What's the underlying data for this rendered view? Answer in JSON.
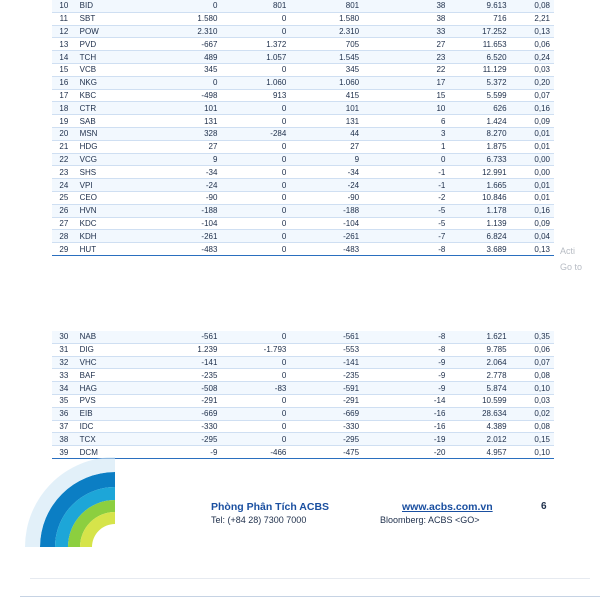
{
  "table_top": [
    {
      "no": "10",
      "code": "BID",
      "v1": "0",
      "v2": "801",
      "v3": "801",
      "v4": "38",
      "v5": "9.613",
      "v6": "0,08"
    },
    {
      "no": "11",
      "code": "SBT",
      "v1": "1.580",
      "v2": "0",
      "v3": "1.580",
      "v4": "38",
      "v5": "716",
      "v6": "2,21"
    },
    {
      "no": "12",
      "code": "POW",
      "v1": "2.310",
      "v2": "0",
      "v3": "2.310",
      "v4": "33",
      "v5": "17.252",
      "v6": "0,13"
    },
    {
      "no": "13",
      "code": "PVD",
      "v1": "-667",
      "v2": "1.372",
      "v3": "705",
      "v4": "27",
      "v5": "11.653",
      "v6": "0,06"
    },
    {
      "no": "14",
      "code": "TCH",
      "v1": "489",
      "v2": "1.057",
      "v3": "1.545",
      "v4": "23",
      "v5": "6.520",
      "v6": "0,24"
    },
    {
      "no": "15",
      "code": "VCB",
      "v1": "345",
      "v2": "0",
      "v3": "345",
      "v4": "22",
      "v5": "11.129",
      "v6": "0,03"
    },
    {
      "no": "16",
      "code": "NKG",
      "v1": "0",
      "v2": "1.060",
      "v3": "1.060",
      "v4": "17",
      "v5": "5.372",
      "v6": "0,20"
    },
    {
      "no": "17",
      "code": "KBC",
      "v1": "-498",
      "v2": "913",
      "v3": "415",
      "v4": "15",
      "v5": "5.599",
      "v6": "0,07"
    },
    {
      "no": "18",
      "code": "CTR",
      "v1": "101",
      "v2": "0",
      "v3": "101",
      "v4": "10",
      "v5": "626",
      "v6": "0,16"
    },
    {
      "no": "19",
      "code": "SAB",
      "v1": "131",
      "v2": "0",
      "v3": "131",
      "v4": "6",
      "v5": "1.424",
      "v6": "0,09"
    },
    {
      "no": "20",
      "code": "MSN",
      "v1": "328",
      "v2": "-284",
      "v3": "44",
      "v4": "3",
      "v5": "8.270",
      "v6": "0,01"
    },
    {
      "no": "21",
      "code": "HDG",
      "v1": "27",
      "v2": "0",
      "v3": "27",
      "v4": "1",
      "v5": "1.875",
      "v6": "0,01"
    },
    {
      "no": "22",
      "code": "VCG",
      "v1": "9",
      "v2": "0",
      "v3": "9",
      "v4": "0",
      "v5": "6.733",
      "v6": "0,00"
    },
    {
      "no": "23",
      "code": "SHS",
      "v1": "-34",
      "v2": "0",
      "v3": "-34",
      "v4": "-1",
      "v5": "12.991",
      "v6": "0,00"
    },
    {
      "no": "24",
      "code": "VPI",
      "v1": "-24",
      "v2": "0",
      "v3": "-24",
      "v4": "-1",
      "v5": "1.665",
      "v6": "0,01"
    },
    {
      "no": "25",
      "code": "CEO",
      "v1": "-90",
      "v2": "0",
      "v3": "-90",
      "v4": "-2",
      "v5": "10.846",
      "v6": "0,01"
    },
    {
      "no": "26",
      "code": "HVN",
      "v1": "-188",
      "v2": "0",
      "v3": "-188",
      "v4": "-5",
      "v5": "1.178",
      "v6": "0,16"
    },
    {
      "no": "27",
      "code": "KDC",
      "v1": "-104",
      "v2": "0",
      "v3": "-104",
      "v4": "-5",
      "v5": "1.139",
      "v6": "0,09"
    },
    {
      "no": "28",
      "code": "KDH",
      "v1": "-261",
      "v2": "0",
      "v3": "-261",
      "v4": "-7",
      "v5": "6.824",
      "v6": "0,04"
    },
    {
      "no": "29",
      "code": "HUT",
      "v1": "-483",
      "v2": "0",
      "v3": "-483",
      "v4": "-8",
      "v5": "3.689",
      "v6": "0,13"
    }
  ],
  "table_bottom": [
    {
      "no": "30",
      "code": "NAB",
      "v1": "-561",
      "v2": "0",
      "v3": "-561",
      "v4": "-8",
      "v5": "1.621",
      "v6": "0,35"
    },
    {
      "no": "31",
      "code": "DIG",
      "v1": "1.239",
      "v2": "-1.793",
      "v3": "-553",
      "v4": "-8",
      "v5": "9.785",
      "v6": "0,06"
    },
    {
      "no": "32",
      "code": "VHC",
      "v1": "-141",
      "v2": "0",
      "v3": "-141",
      "v4": "-9",
      "v5": "2.064",
      "v6": "0,07"
    },
    {
      "no": "33",
      "code": "BAF",
      "v1": "-235",
      "v2": "0",
      "v3": "-235",
      "v4": "-9",
      "v5": "2.778",
      "v6": "0,08"
    },
    {
      "no": "34",
      "code": "HAG",
      "v1": "-508",
      "v2": "-83",
      "v3": "-591",
      "v4": "-9",
      "v5": "5.874",
      "v6": "0,10"
    },
    {
      "no": "35",
      "code": "PVS",
      "v1": "-291",
      "v2": "0",
      "v3": "-291",
      "v4": "-14",
      "v5": "10.599",
      "v6": "0,03"
    },
    {
      "no": "36",
      "code": "EIB",
      "v1": "-669",
      "v2": "0",
      "v3": "-669",
      "v4": "-16",
      "v5": "28.634",
      "v6": "0,02"
    },
    {
      "no": "37",
      "code": "IDC",
      "v1": "-330",
      "v2": "0",
      "v3": "-330",
      "v4": "-16",
      "v5": "4.389",
      "v6": "0,08"
    },
    {
      "no": "38",
      "code": "TCX",
      "v1": "-295",
      "v2": "0",
      "v3": "-295",
      "v4": "-19",
      "v5": "2.012",
      "v6": "0,15"
    },
    {
      "no": "39",
      "code": "DCM",
      "v1": "-9",
      "v2": "-466",
      "v3": "-475",
      "v4": "-20",
      "v5": "4.957",
      "v6": "0,10"
    }
  ],
  "footer": {
    "dept": "Phòng Phân Tích ACBS",
    "tel": "Tel: (+84 28) 7300 7000",
    "website": "www.acbs.com.vn",
    "bloomberg": "Bloomberg: ACBS <GO>",
    "page": "6"
  },
  "watermark": {
    "line1": "Acti",
    "line2": "Go to"
  },
  "colors": {
    "positive": "#2fa84f",
    "negative": "#d9382c",
    "border": "#2a6fbf",
    "brand": "#1a4fa0"
  }
}
